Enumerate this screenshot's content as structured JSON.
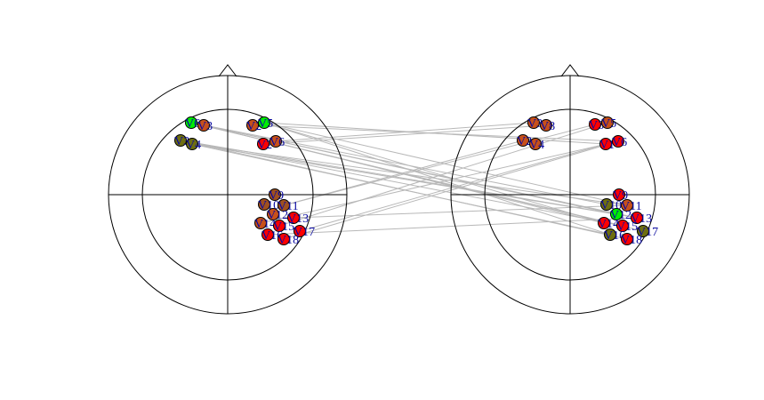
{
  "colors": {
    "outline": "#000000",
    "connection": "#b8b8b8",
    "label": "#0a0aa0",
    "red": "#ff0000",
    "dark_red": "#e01a10",
    "orange": "#c8501a",
    "brown": "#a0501e",
    "olive": "#6e6e10",
    "green": "#00ee00"
  },
  "heads": [
    {
      "id": "left",
      "channels": [
        {
          "label": "V6",
          "color": "green"
        },
        {
          "label": "V3",
          "color": "orange"
        },
        {
          "label": "V2",
          "color": "orange"
        },
        {
          "label": "V5",
          "color": "green"
        },
        {
          "label": "V3",
          "color": "olive"
        },
        {
          "label": "V4",
          "color": "olive"
        },
        {
          "label": "V2",
          "color": "red"
        },
        {
          "label": "V6",
          "color": "orange"
        },
        {
          "label": "V9",
          "color": "brown"
        },
        {
          "label": "V10",
          "color": "brown"
        },
        {
          "label": "V11",
          "color": "brown"
        },
        {
          "label": "V12",
          "color": "orange"
        },
        {
          "label": "V13",
          "color": "red"
        },
        {
          "label": "V14",
          "color": "orange"
        },
        {
          "label": "V15",
          "color": "red"
        },
        {
          "label": "V16",
          "color": "red"
        },
        {
          "label": "V17",
          "color": "red"
        },
        {
          "label": "V18",
          "color": "red"
        }
      ]
    },
    {
      "id": "right",
      "channels": [
        {
          "label": "V3",
          "color": "orange"
        },
        {
          "label": "V8",
          "color": "orange"
        },
        {
          "label": "V3",
          "color": "red"
        },
        {
          "label": "V5",
          "color": "orange"
        },
        {
          "label": "V2",
          "color": "orange"
        },
        {
          "label": "V4",
          "color": "orange"
        },
        {
          "label": "V1",
          "color": "red"
        },
        {
          "label": "V6",
          "color": "red"
        },
        {
          "label": "V9",
          "color": "red"
        },
        {
          "label": "V10",
          "color": "olive"
        },
        {
          "label": "V11",
          "color": "orange"
        },
        {
          "label": "V12",
          "color": "green"
        },
        {
          "label": "V13",
          "color": "red"
        },
        {
          "label": "V14",
          "color": "red"
        },
        {
          "label": "V15",
          "color": "red"
        },
        {
          "label": "V16",
          "color": "olive"
        },
        {
          "label": "V17",
          "color": "olive"
        },
        {
          "label": "V18",
          "color": "red"
        }
      ]
    }
  ],
  "connections": [
    [
      0,
      9
    ],
    [
      0,
      12
    ],
    [
      0,
      14
    ],
    [
      0,
      16
    ],
    [
      3,
      10
    ],
    [
      3,
      13
    ],
    [
      3,
      15
    ],
    [
      4,
      11
    ],
    [
      4,
      14
    ],
    [
      4,
      17
    ],
    [
      5,
      10
    ],
    [
      5,
      12
    ],
    [
      5,
      15
    ],
    [
      1,
      11
    ],
    [
      1,
      13
    ],
    [
      2,
      7
    ],
    [
      3,
      6
    ],
    [
      6,
      1
    ],
    [
      7,
      0
    ],
    [
      10,
      4
    ],
    [
      10,
      2
    ],
    [
      13,
      7
    ],
    [
      14,
      3
    ],
    [
      16,
      6
    ],
    [
      17,
      7
    ],
    [
      12,
      10
    ],
    [
      15,
      12
    ]
  ]
}
